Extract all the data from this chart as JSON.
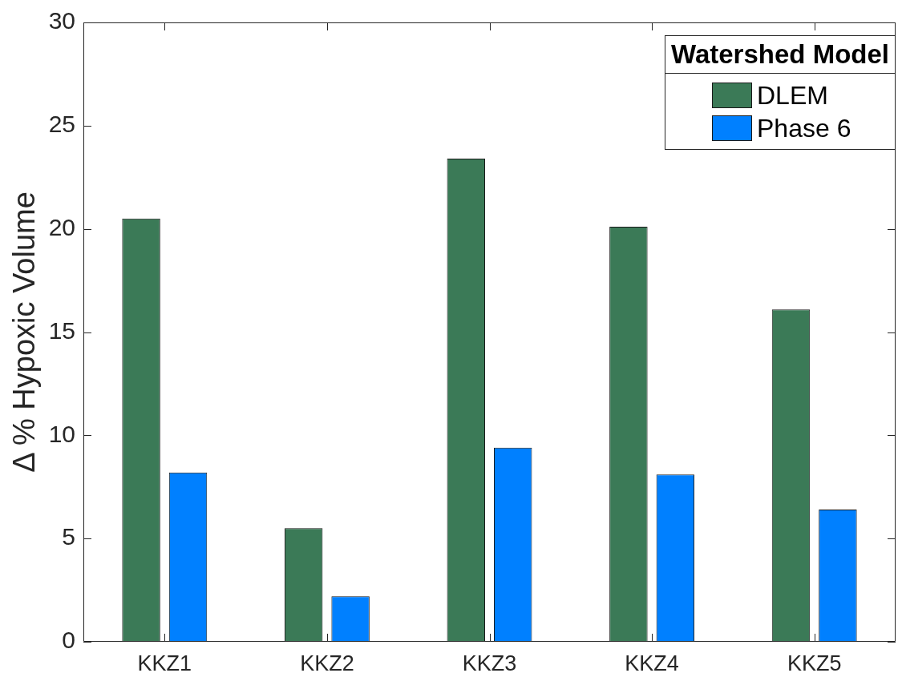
{
  "chart_data": {
    "type": "bar",
    "ylabel": "Δ % Hypoxic Volume",
    "legend_title": "Watershed Model",
    "legend": "top right",
    "categories": [
      "KKZ1",
      "KKZ2",
      "KKZ3",
      "KKZ4",
      "KKZ5"
    ],
    "series": [
      {
        "name": "DLEM",
        "color": "#3b7a57",
        "values": [
          20.5,
          5.5,
          23.4,
          20.1,
          16.1
        ]
      },
      {
        "name": "Phase 6",
        "color": "#0080ff",
        "values": [
          8.2,
          2.2,
          9.4,
          8.1,
          6.4
        ]
      }
    ],
    "ylim": [
      0,
      30
    ],
    "yticks": [
      0,
      5,
      10,
      15,
      20,
      25,
      30
    ]
  }
}
